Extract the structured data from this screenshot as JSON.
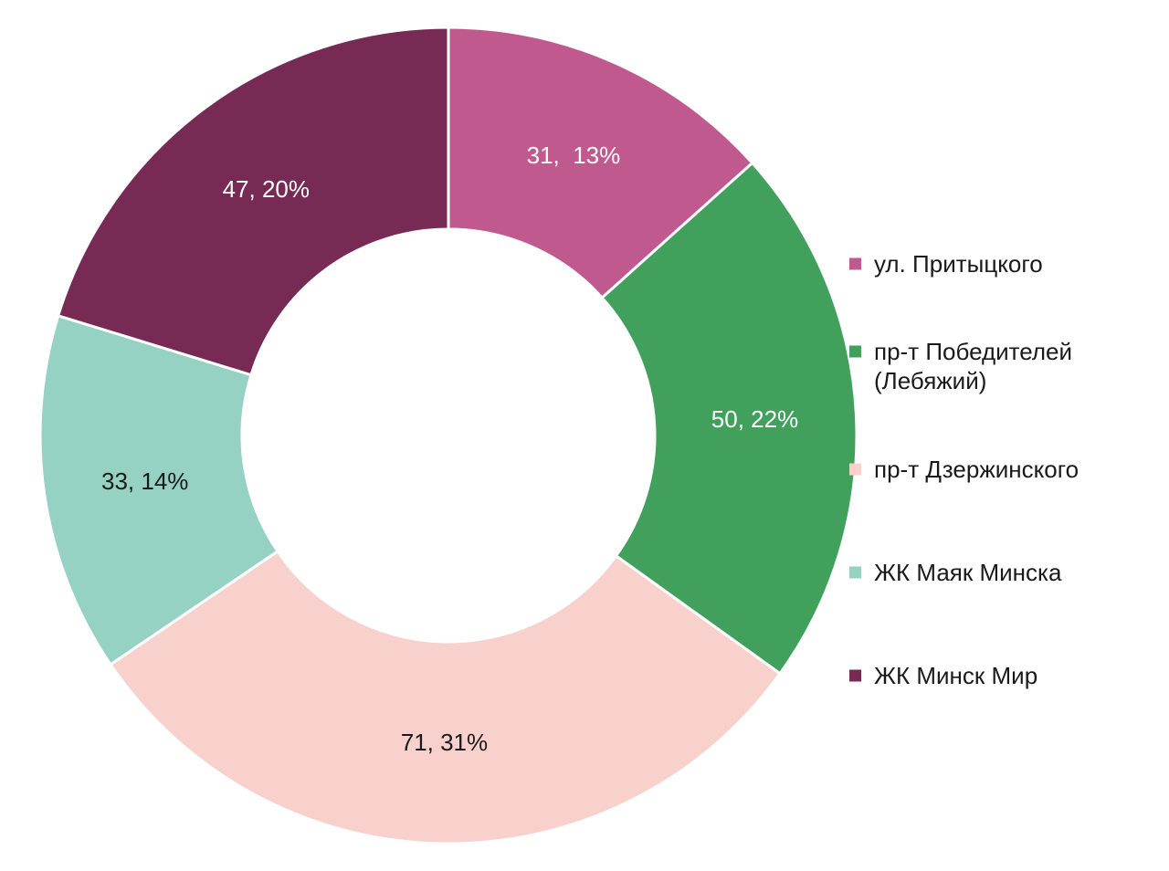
{
  "chart_data": {
    "type": "pie",
    "style": "donut",
    "title": "",
    "categories": [
      "ул. Притыцкого",
      "пр-т Победителей (Лебяжий)",
      "пр-т Дзержинского",
      "ЖК Маяк Минска",
      "ЖК Минск Мир"
    ],
    "values": [
      31,
      50,
      71,
      33,
      47
    ],
    "percents": [
      13,
      22,
      31,
      14,
      20
    ],
    "data_labels": [
      "31,  13%",
      "50, 22%",
      "71, 31%",
      "33, 14%",
      "47, 20%"
    ],
    "colors": [
      "#c05a8e",
      "#41a05c",
      "#f8d0cc",
      "#95d2c4",
      "#772b54"
    ],
    "label_colors": [
      "#ffffff",
      "#ffffff",
      "#1a1a1a",
      "#1a1a1a",
      "#ffffff"
    ],
    "legend": {
      "position": "right",
      "entries": [
        [
          "ул. Притыцкого"
        ],
        [
          "пр-т Победителей",
          "(Лебяжий)"
        ],
        [
          "пр-т Дзержинского"
        ],
        [
          "ЖК Маяк Минска"
        ],
        [
          "ЖК Минск Мир"
        ]
      ]
    }
  }
}
